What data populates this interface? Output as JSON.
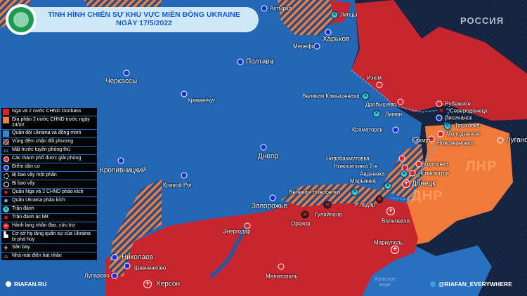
{
  "header": {
    "title_line1": "TÌNH HÌNH CHIẾN SỰ KHU VỰC MIỀN ĐÔNG UKRAINE",
    "title_line2": "NGÀY 17/5/2022"
  },
  "watermark": "РОССИЯ",
  "regions": {
    "lnr": "ЛНР",
    "dnr": "ДНР"
  },
  "sea_label": "Азовское море",
  "colors": {
    "russia_controlled": "#c8262f",
    "dpr_lpr_before": "#f07a3a",
    "ukraine": "#2467b5",
    "buffer_hatch": "#f07a3a",
    "background": "#15233f"
  },
  "legend": [
    {
      "icon": "red-square",
      "label": "Nga và 2 nước CHND Donbass"
    },
    {
      "icon": "orange-square",
      "label": "Địa phận 2 nước CHND trước ngày 24/02"
    },
    {
      "icon": "blue-square",
      "label": "Quân đội Ukraina và đồng minh"
    },
    {
      "icon": "hatch-square",
      "label": "Vùng đệm chặn đối phương"
    },
    {
      "icon": "defense-line",
      "label": "Mặt trước tuyến phòng thủ"
    },
    {
      "icon": "red-dot",
      "label": "Các thành phố được giải phóng"
    },
    {
      "icon": "blue-dot",
      "label": "Điểm dân cư"
    },
    {
      "icon": "dashed-ring",
      "label": "Bị bao vây một phần"
    },
    {
      "icon": "ring",
      "label": "Bị bao vây"
    },
    {
      "icon": "red-artillery",
      "label": "Quân Nga và 2 CHND pháo kích"
    },
    {
      "icon": "blue-artillery",
      "label": "Quân Ukraina pháo kích"
    },
    {
      "icon": "battle",
      "label": "Trận đánh"
    },
    {
      "icon": "fierce-battle",
      "label": "Trận đánh ác liệt"
    },
    {
      "icon": "humanitarian",
      "label": "Hành lang nhân đạo, cứu trợ"
    },
    {
      "icon": "destroyed-infrastructure",
      "label": "Cơ sở hạ tầng quân sự của Ukraina bị phá hủy"
    },
    {
      "icon": "airport",
      "label": "Sân bay"
    },
    {
      "icon": "nuclear-plant",
      "label": "Nhà mát điện hạt nhân"
    }
  ],
  "cities": [
    {
      "name": "Ахтырка",
      "marker": "blue"
    },
    {
      "name": "Липцы",
      "marker": "battle"
    },
    {
      "name": "Харьков",
      "marker": "blue"
    },
    {
      "name": "Мерефа",
      "marker": "blue"
    },
    {
      "name": "Полтава",
      "marker": "blue"
    },
    {
      "name": "Черкассы",
      "marker": "blue"
    },
    {
      "name": "Кременчуг",
      "marker": "blue"
    },
    {
      "name": "Кропивницкий",
      "marker": "blue"
    },
    {
      "name": "Днепр",
      "marker": "blue"
    },
    {
      "name": "Кривой Рог",
      "marker": "blue"
    },
    {
      "name": "Запорожье",
      "marker": "blue"
    },
    {
      "name": "Николаев",
      "marker": "blue"
    },
    {
      "name": "Шевченково",
      "marker": "blue"
    },
    {
      "name": "Лупарево",
      "marker": "blue"
    },
    {
      "name": "Херсон",
      "marker": "aid"
    },
    {
      "name": "Изюм",
      "marker": "red"
    },
    {
      "name": "Великая Камышеваха",
      "marker": "battle"
    },
    {
      "name": "Дробышево",
      "marker": "red"
    },
    {
      "name": "Лиман",
      "marker": "battle"
    },
    {
      "name": "Краматорск",
      "marker": "blue"
    },
    {
      "name": "Рубежное",
      "marker": "red"
    },
    {
      "name": "Северодонецк",
      "marker": "fierce"
    },
    {
      "name": "Лисичанск",
      "marker": "blue"
    },
    {
      "name": "Тошковка",
      "marker": "battle"
    },
    {
      "name": "Молодежное",
      "marker": "red"
    },
    {
      "name": "Новозвановка",
      "marker": "red"
    },
    {
      "name": "Бахмут",
      "marker": "blue"
    },
    {
      "name": "Луганск",
      "marker": "orange"
    },
    {
      "name": "Новобахмутовка",
      "marker": "red"
    },
    {
      "name": "Новоселовка 2-я",
      "marker": "red"
    },
    {
      "name": "Авдеевка",
      "marker": "battle"
    },
    {
      "name": "Горловка",
      "marker": "red"
    },
    {
      "name": "Ясиноватая",
      "marker": "red"
    },
    {
      "name": "Донецк",
      "marker": "aid"
    },
    {
      "name": "Марьинка",
      "marker": "battle"
    },
    {
      "name": "Великая Новоселка",
      "marker": "battle"
    },
    {
      "name": "Угледар",
      "marker": "fierce"
    },
    {
      "name": "Гуляйполе",
      "marker": "fierce"
    },
    {
      "name": "Орехов",
      "marker": "fierce"
    },
    {
      "name": "Энергодар",
      "marker": "red"
    },
    {
      "name": "Волноваха",
      "marker": "aid"
    },
    {
      "name": "Мариуполь",
      "marker": "aid"
    },
    {
      "name": "Мелитополь",
      "marker": "red"
    }
  ],
  "footer": {
    "site": "RIAFAN.RU",
    "telegram": "@RIAFAN_EVERYWHERE"
  }
}
